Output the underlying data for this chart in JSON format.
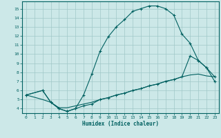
{
  "xlabel": "Humidex (Indice chaleur)",
  "background_color": "#cce8e8",
  "grid_color": "#a0c8c8",
  "line_color": "#006060",
  "xlim": [
    -0.5,
    23.5
  ],
  "ylim": [
    3.5,
    15.8
  ],
  "xticks": [
    0,
    1,
    2,
    3,
    4,
    5,
    6,
    7,
    8,
    9,
    10,
    11,
    12,
    13,
    14,
    15,
    16,
    17,
    18,
    19,
    20,
    21,
    22,
    23
  ],
  "yticks": [
    4,
    5,
    6,
    7,
    8,
    9,
    10,
    11,
    12,
    13,
    14,
    15
  ],
  "line1_x": [
    0,
    2,
    3,
    4,
    5,
    6,
    7,
    8,
    9,
    10,
    11,
    12,
    13,
    14,
    15,
    16,
    17,
    18,
    19,
    20,
    21,
    22,
    23
  ],
  "line1_y": [
    5.5,
    6.0,
    4.7,
    4.0,
    3.7,
    4.0,
    5.5,
    7.8,
    10.3,
    11.9,
    13.0,
    13.8,
    14.7,
    15.0,
    15.3,
    15.3,
    15.0,
    14.3,
    12.2,
    11.2,
    9.3,
    8.5,
    7.0
  ],
  "line2_x": [
    0,
    2,
    3,
    4,
    5,
    6,
    7,
    8,
    9,
    10,
    11,
    12,
    13,
    14,
    15,
    16,
    17,
    18,
    19,
    20,
    21,
    22,
    23
  ],
  "line2_y": [
    5.5,
    5.0,
    4.7,
    4.1,
    4.1,
    4.3,
    4.5,
    4.7,
    5.0,
    5.2,
    5.5,
    5.7,
    6.0,
    6.2,
    6.5,
    6.7,
    7.0,
    7.2,
    7.5,
    7.7,
    7.8,
    7.6,
    7.5
  ],
  "line3_x": [
    0,
    2,
    3,
    4,
    5,
    6,
    7,
    8,
    9,
    10,
    11,
    12,
    13,
    14,
    15,
    16,
    17,
    18,
    19,
    20,
    21,
    22,
    23
  ],
  "line3_y": [
    5.5,
    6.0,
    4.7,
    4.0,
    3.7,
    4.0,
    4.3,
    4.5,
    5.0,
    5.2,
    5.5,
    5.7,
    6.0,
    6.2,
    6.5,
    6.7,
    7.0,
    7.2,
    7.5,
    9.8,
    9.3,
    8.5,
    7.5
  ]
}
